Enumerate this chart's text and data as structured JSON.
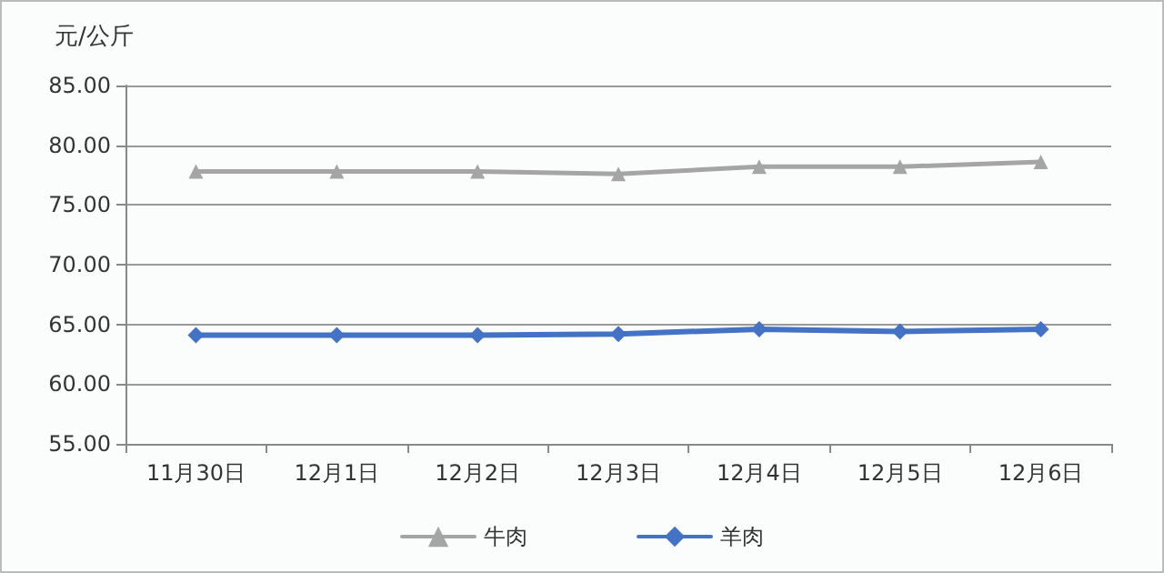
{
  "chart_data": {
    "type": "line",
    "ylabel": "元/公斤",
    "categories": [
      "11月30日",
      "12月1日",
      "12月2日",
      "12月3日",
      "12月4日",
      "12月5日",
      "12月6日"
    ],
    "series": [
      {
        "name": "牛肉",
        "color": "#a5a5a5",
        "marker": "triangle",
        "values": [
          77.8,
          77.8,
          77.8,
          77.6,
          78.2,
          78.2,
          78.6
        ]
      },
      {
        "name": "羊肉",
        "color": "#4472c4",
        "marker": "diamond",
        "values": [
          64.1,
          64.1,
          64.1,
          64.2,
          64.6,
          64.4,
          64.6
        ]
      }
    ],
    "ylim": [
      55,
      85
    ],
    "yticks": [
      {
        "value": 55,
        "label": "55.00"
      },
      {
        "value": 60,
        "label": "60.00"
      },
      {
        "value": 65,
        "label": "65.00"
      },
      {
        "value": 70,
        "label": "70.00"
      },
      {
        "value": 75,
        "label": "75.00"
      },
      {
        "value": 80,
        "label": "80.00"
      },
      {
        "value": 85,
        "label": "85.00"
      }
    ],
    "grid": "y",
    "legend": "bottom",
    "line_style": "solid"
  }
}
